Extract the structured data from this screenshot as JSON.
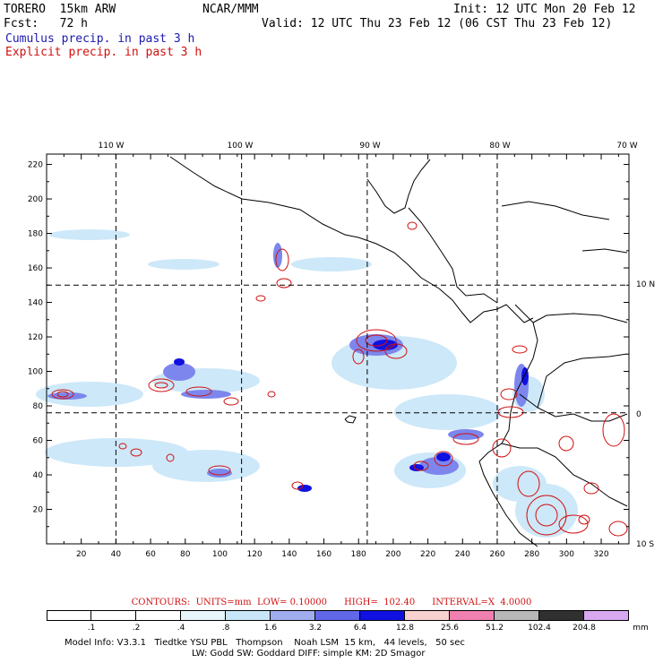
{
  "header": {
    "model": "TORERO  15km ARW",
    "org": "NCAR/MMM",
    "init": "Init: 12 UTC Mon 20 Feb 12",
    "fcst": "Fcst:   72 h",
    "valid": "Valid: 12 UTC Thu 23 Feb 12 (06 CST Thu 23 Feb 12)",
    "field_blue": "Cumulus precip. in past 3 h",
    "field_red": "Explicit precip. in past 3 h"
  },
  "map": {
    "lon_labels": [
      "110 W",
      "100 W",
      "90 W",
      "80 W",
      "70 W"
    ],
    "lat_labels": [
      "10 N",
      "0",
      "10 S"
    ],
    "x_ticks": [
      "20",
      "40",
      "60",
      "80",
      "100",
      "120",
      "140",
      "160",
      "180",
      "200",
      "220",
      "240",
      "260",
      "280",
      "300",
      "320"
    ],
    "y_ticks": [
      "20",
      "40",
      "60",
      "80",
      "100",
      "120",
      "140",
      "160",
      "180",
      "200",
      "220"
    ],
    "grid_x_values": [
      40,
      112.5,
      185,
      260
    ],
    "grid_y_values": [
      76,
      150
    ],
    "x_range": [
      0,
      336
    ],
    "y_range": [
      0,
      226
    ],
    "colors": {
      "coast": "#000000",
      "grid": "#000000",
      "explicit_contour": "#d01010"
    }
  },
  "contours": {
    "text": "CONTOURS:  UNITS=mm  LOW= 0.10000      HIGH=  102.40      INTERVAL=X  4.0000"
  },
  "legend": {
    "labels": [
      ".1",
      ".2",
      ".4",
      ".8",
      "1.6",
      "3.2",
      "6.4",
      "12.8",
      "25.6",
      "51.2",
      "102.4",
      "204.8"
    ],
    "unit": "mm",
    "colors": [
      "#ffffff",
      "#ffffff",
      "#ffffff",
      "#e8f6fc",
      "#c8e6f8",
      "#a0aef0",
      "#6068e8",
      "#1010e0",
      "#f8d0d0",
      "#f080b0",
      "#b8b8b8",
      "#303030",
      "#d8a8f0"
    ]
  },
  "footer": {
    "line1": "Model Info: V3.3.1   Tiedtke YSU PBL   Thompson    Noah LSM  15 km,   44 levels,   50 sec",
    "line2": "LW: Godd SW: Goddard DIFF: simple KM: 2D Smagor"
  }
}
